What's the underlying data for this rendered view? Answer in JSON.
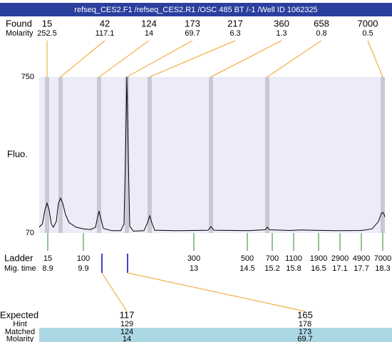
{
  "chart_data": {
    "type": "electropherogram",
    "title": "refseq_CES2.F1 /refseq_CES2.R1 /OSC 485 BT /-1 /Well ID 1062325",
    "ylabel": "Fluo.",
    "ylim": [
      70,
      750
    ],
    "yticks": [
      70,
      750
    ],
    "xlim": [
      8.66,
      18.36
    ],
    "trace": {
      "x": [
        8.66,
        8.75,
        8.82,
        8.88,
        8.94,
        9.0,
        9.06,
        9.14,
        9.2,
        9.26,
        9.32,
        9.4,
        9.5,
        9.7,
        9.9,
        10.1,
        10.24,
        10.3,
        10.34,
        10.38,
        10.46,
        10.7,
        10.95,
        11.04,
        11.08,
        11.12,
        11.16,
        11.2,
        11.3,
        11.6,
        11.7,
        11.76,
        11.82,
        11.9,
        12.5,
        13.4,
        13.48,
        13.56,
        14.5,
        15.0,
        15.06,
        15.12,
        15.7,
        16.0,
        16.3,
        17.0,
        17.7,
        18.0,
        18.18,
        18.26,
        18.3,
        18.34,
        18.36
      ],
      "values": [
        95,
        110,
        170,
        200,
        170,
        110,
        95,
        120,
        200,
        222,
        200,
        150,
        115,
        95,
        88,
        85,
        95,
        140,
        166,
        140,
        90,
        80,
        80,
        110,
        400,
        750,
        400,
        100,
        78,
        80,
        115,
        145,
        115,
        82,
        80,
        82,
        98,
        82,
        80,
        84,
        95,
        84,
        81,
        83,
        82,
        80,
        81,
        88,
        120,
        155,
        160,
        150,
        140
      ]
    },
    "found": {
      "label": "Found",
      "molarity_label": "Molarity",
      "sizes": [
        15,
        42,
        124,
        173,
        217,
        360,
        658,
        7000
      ],
      "molarities": [
        252.5,
        117.1,
        14,
        69.7,
        6.3,
        1.3,
        0.8,
        0.5
      ],
      "times": [
        8.88,
        9.26,
        10.34,
        11.12,
        11.76,
        13.48,
        15.06,
        18.3
      ]
    },
    "ladder": {
      "label": "Ladder",
      "time_label": "Mig. time",
      "sizes": [
        15,
        100,
        300,
        500,
        700,
        1100,
        1900,
        2900,
        4900,
        7000
      ],
      "times": [
        8.9,
        9.9,
        13,
        14.5,
        15.2,
        15.8,
        16.5,
        17.1,
        17.7,
        18.3
      ]
    },
    "matches": {
      "labels": [
        "Expected",
        "Hint",
        "Matched",
        "Molarity"
      ],
      "expected": [
        117,
        165
      ],
      "hint": [
        129,
        178
      ],
      "matched": [
        124,
        173
      ],
      "molarity": [
        14,
        69.7
      ],
      "times": [
        10.42,
        11.14
      ]
    }
  }
}
